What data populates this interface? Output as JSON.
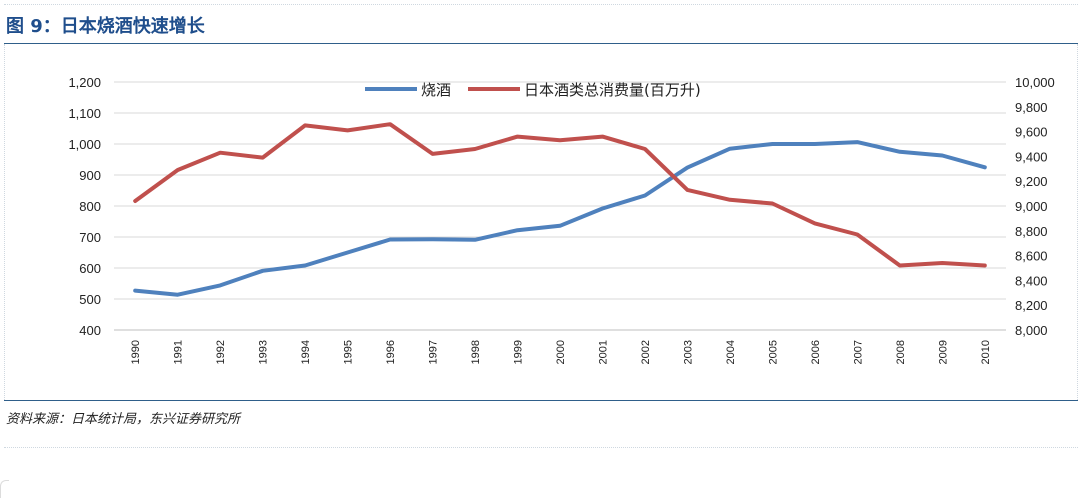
{
  "title": "图 9：日本烧酒快速增长",
  "source": "资料来源：日本统计局，东兴证券研究所",
  "chart_data": {
    "type": "line",
    "categories": [
      "1990",
      "1991",
      "1992",
      "1993",
      "1994",
      "1995",
      "1996",
      "1997",
      "1998",
      "1999",
      "2000",
      "2001",
      "2002",
      "2003",
      "2004",
      "2005",
      "2006",
      "2007",
      "2008",
      "2009",
      "2010"
    ],
    "y_left": {
      "ylim": [
        400,
        1200
      ],
      "ticks": [
        400,
        500,
        600,
        700,
        800,
        900,
        1000,
        1100,
        1200
      ],
      "tick_labels": [
        "400",
        "500",
        "600",
        "700",
        "800",
        "900",
        "1,000",
        "1,100",
        "1,200"
      ]
    },
    "y_right": {
      "ylim": [
        8000,
        10000
      ],
      "ticks": [
        8000,
        8200,
        8400,
        8600,
        8800,
        9000,
        9200,
        9400,
        9600,
        9800,
        10000
      ],
      "tick_labels": [
        "8,000",
        "8,200",
        "8,400",
        "8,600",
        "8,800",
        "9,000",
        "9,200",
        "9,400",
        "9,600",
        "9,800",
        "10,000"
      ]
    },
    "series": [
      {
        "name": "烧酒",
        "axis": "left",
        "color": "#4f81bd",
        "values": [
          527,
          514,
          544,
          591,
          608,
          650,
          692,
          693,
          691,
          722,
          736,
          792,
          834,
          924,
          985,
          1000,
          1000,
          1006,
          975,
          963,
          925
        ]
      },
      {
        "name": "日本酒类总消费量(百万升)",
        "axis": "right",
        "color": "#c0504d",
        "values": [
          9040,
          9290,
          9430,
          9390,
          9650,
          9610,
          9660,
          9420,
          9460,
          9560,
          9530,
          9560,
          9460,
          9130,
          9050,
          9020,
          8860,
          8770,
          8520,
          8540,
          8520
        ]
      }
    ],
    "legend_position": "top-center",
    "grid": "horizontal"
  }
}
